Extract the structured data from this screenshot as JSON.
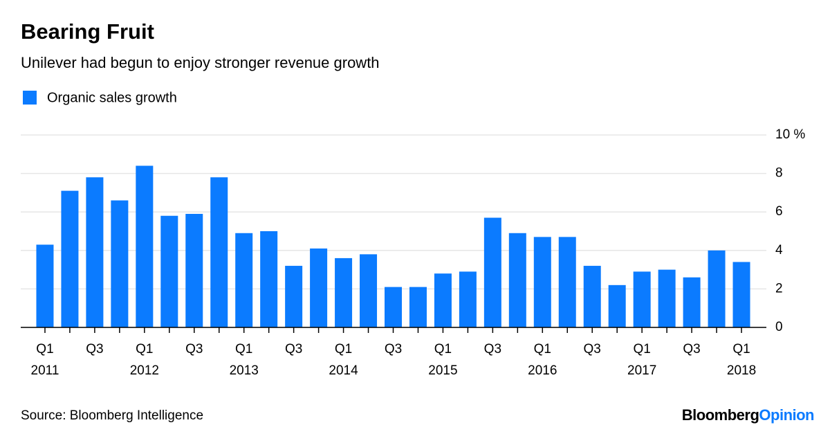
{
  "chart_data": {
    "type": "bar",
    "title": "Bearing Fruit",
    "subtitle": "Unilever had begun to enjoy stronger revenue growth",
    "series": [
      {
        "name": "Organic sales growth",
        "color": "#0b7bff",
        "values": [
          4.3,
          7.1,
          7.8,
          6.6,
          8.4,
          5.8,
          5.9,
          7.8,
          4.9,
          5.0,
          3.2,
          4.1,
          3.6,
          3.8,
          2.1,
          2.1,
          2.8,
          2.9,
          5.7,
          4.9,
          4.7,
          4.7,
          3.2,
          2.2,
          2.9,
          3.0,
          2.6,
          4.0,
          3.4
        ]
      }
    ],
    "categories": [
      "Q1 2011",
      null,
      "Q3",
      null,
      "Q1 2012",
      null,
      "Q3",
      null,
      "Q1 2013",
      null,
      "Q3",
      null,
      "Q1 2014",
      null,
      "Q3",
      null,
      "Q1 2015",
      null,
      "Q3",
      null,
      "Q1 2016",
      null,
      "Q3",
      null,
      "Q1 2017",
      null,
      "Q3",
      null,
      "Q1 2018"
    ],
    "ylim": [
      0,
      10
    ],
    "yticks": [
      0,
      2,
      4,
      6,
      8,
      {
        "value": 10,
        "label": "10 %"
      }
    ],
    "grid": true,
    "source": "Source: Bloomberg Intelligence",
    "logo": {
      "brand": "Bloomberg",
      "product": "Opinion"
    }
  }
}
